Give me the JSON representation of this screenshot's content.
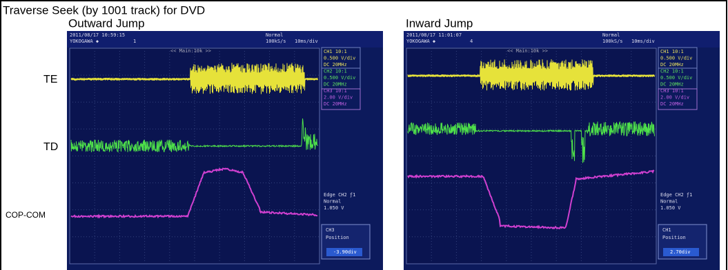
{
  "title": "Traverse Seek (by 1001 track) for DVD",
  "signal_labels": [
    "TE",
    "TD",
    "COP-COM"
  ],
  "panels": [
    {
      "heading": "Outward Jump",
      "scope": {
        "timestamp": "2011/08/17 10:59:15",
        "mode": "Normal",
        "brand": "YOKOGAWA ◆",
        "count": "1",
        "rate": "100kS/s",
        "timebase": "10ms/div",
        "zoom": "<< Main:10k >>",
        "side": [
          "CH1 10:1",
          "0.500 V/div",
          "DC  20MHz",
          "CH2 10:1",
          "0.500 V/div",
          "DC  20MHz",
          "CH3 10:1",
          "2.00 V/div",
          "DC  20MHz"
        ],
        "trigger": [
          "Edge CH2 ƒ1",
          "Normal",
          "1.050 V"
        ],
        "knob": [
          "CH3",
          "Position",
          "-3.90div"
        ]
      }
    },
    {
      "heading": "Inward Jump",
      "scope": {
        "timestamp": "2011/08/17 11:01:07",
        "mode": "Normal",
        "brand": "YOKOGAWA ◆",
        "count": "4",
        "rate": "100kS/s",
        "timebase": "10ms/div",
        "zoom": "<< Main:10k >>",
        "side": [
          "CH1 10:1",
          "0.500 V/div",
          "DC  20MHz",
          "CH2 10:1",
          "0.500 V/div",
          "DC  20MHz",
          "CH3 10:1",
          "2.00 V/div",
          "DC  20MHz"
        ],
        "trigger": [
          "Edge CH2 ƒ1",
          "Normal",
          "1.050 V"
        ],
        "knob": [
          "CH1",
          "Position",
          "2.70div"
        ]
      }
    }
  ]
}
